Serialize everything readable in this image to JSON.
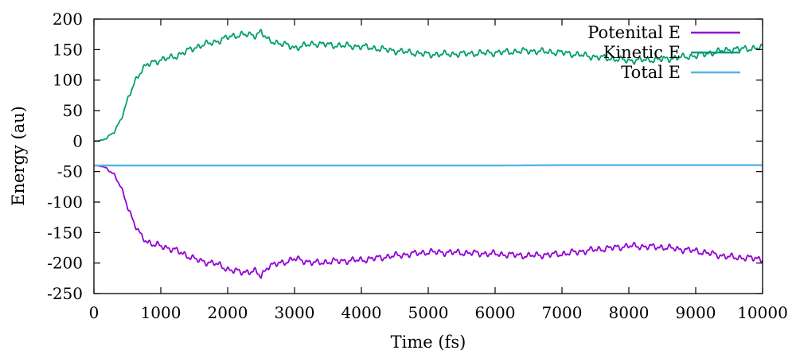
{
  "chart_data": {
    "type": "line",
    "title": "",
    "xlabel": "Time (fs)",
    "ylabel": "Energy (au)",
    "xlim": [
      0,
      10000
    ],
    "ylim": [
      -250,
      200
    ],
    "xticks": [
      0,
      1000,
      2000,
      3000,
      4000,
      5000,
      6000,
      7000,
      8000,
      9000,
      10000
    ],
    "yticks": [
      -250,
      -200,
      -150,
      -100,
      -50,
      0,
      50,
      100,
      150,
      200
    ],
    "grid": false,
    "legend_position": "top-right",
    "series": [
      {
        "name": "Potenital E",
        "color": "#9400d3",
        "x": [
          0,
          100,
          200,
          300,
          400,
          500,
          600,
          700,
          800,
          900,
          1000,
          1200,
          1400,
          1600,
          1800,
          2000,
          2200,
          2400,
          2500,
          2600,
          2800,
          3000,
          3300,
          3600,
          4000,
          4500,
          5000,
          5500,
          6000,
          6500,
          7000,
          7500,
          8000,
          8500,
          9000,
          9500,
          10000
        ],
        "values": [
          -40,
          -41,
          -45,
          -55,
          -75,
          -105,
          -135,
          -155,
          -165,
          -170,
          -172,
          -178,
          -188,
          -197,
          -200,
          -210,
          -215,
          -213,
          -222,
          -205,
          -200,
          -193,
          -200,
          -197,
          -195,
          -188,
          -182,
          -183,
          -185,
          -188,
          -185,
          -178,
          -172,
          -174,
          -180,
          -190,
          -193
        ]
      },
      {
        "name": "Kinetic E",
        "color": "#009e73",
        "x": [
          0,
          100,
          200,
          300,
          400,
          500,
          600,
          700,
          800,
          900,
          1000,
          1200,
          1400,
          1600,
          1800,
          2000,
          2200,
          2400,
          2500,
          2600,
          2800,
          3000,
          3300,
          3600,
          4000,
          4500,
          5000,
          5500,
          6000,
          6500,
          7000,
          7500,
          8000,
          8500,
          9000,
          9500,
          10000
        ],
        "values": [
          0,
          1,
          5,
          15,
          35,
          65,
          95,
          115,
          125,
          130,
          133,
          138,
          148,
          157,
          162,
          170,
          175,
          173,
          180,
          165,
          160,
          153,
          160,
          157,
          155,
          148,
          142,
          143,
          145,
          148,
          145,
          138,
          132,
          134,
          140,
          150,
          153
        ]
      },
      {
        "name": "Total E",
        "color": "#56b4e9",
        "x": [
          0,
          2000,
          4000,
          6000,
          7000,
          8000,
          10000
        ],
        "values": [
          -40,
          -40,
          -40,
          -40,
          -39.5,
          -39.5,
          -39.5
        ]
      }
    ]
  }
}
